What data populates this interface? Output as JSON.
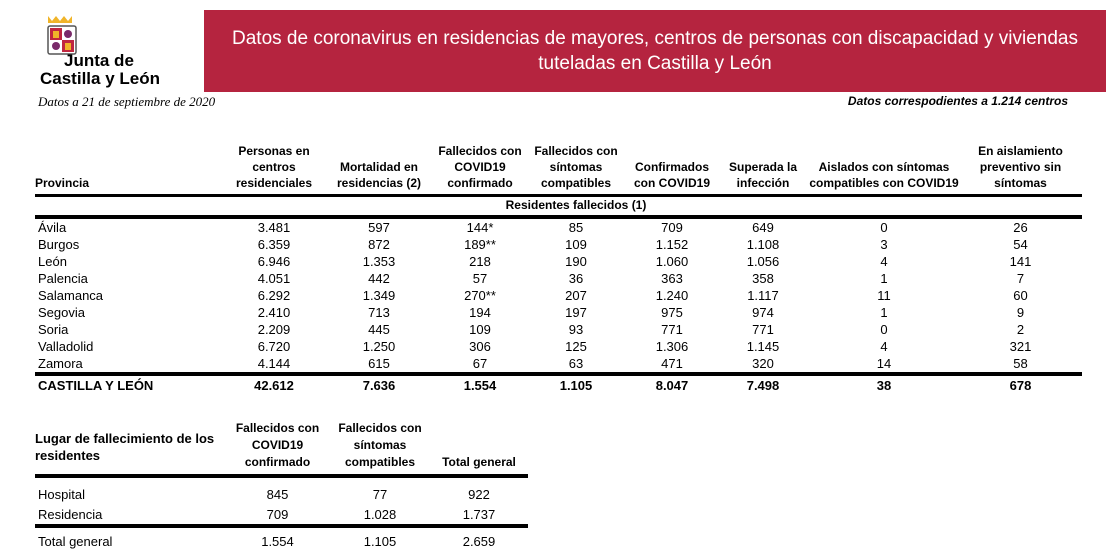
{
  "header": {
    "title": "Datos de coronavirus en residencias de mayores, centros de personas con discapacidad y viviendas tuteladas en Castilla y León",
    "logo_text_1": "Junta de",
    "logo_text_2": "Castilla y León",
    "date": "Datos a 21 de septiembre de 2020",
    "centros": "Datos correspodientes a 1.214 centros",
    "banner_color": "#b5243f"
  },
  "main_table": {
    "headers": [
      "Provincia",
      "Personas en centros residenciales",
      "Mortalidad en residencias (2)",
      "Fallecidos con COVID19 confirmado",
      "Fallecidos con síntomas compatibles",
      "Confirmados con COVID19",
      "Superada la infección",
      "Aislados con síntomas compatibles con COVID19",
      "En aislamiento preventivo sin síntomas"
    ],
    "subheader": "Residentes fallecidos (1)",
    "rows": [
      [
        "Ávila",
        "3.481",
        "597",
        "144*",
        "85",
        "709",
        "649",
        "0",
        "26"
      ],
      [
        "Burgos",
        "6.359",
        "872",
        "189**",
        "109",
        "1.152",
        "1.108",
        "3",
        "54"
      ],
      [
        "León",
        "6.946",
        "1.353",
        "218",
        "190",
        "1.060",
        "1.056",
        "4",
        "141"
      ],
      [
        "Palencia",
        "4.051",
        "442",
        "57",
        "36",
        "363",
        "358",
        "1",
        "7"
      ],
      [
        "Salamanca",
        "6.292",
        "1.349",
        "270**",
        "207",
        "1.240",
        "1.117",
        "11",
        "60"
      ],
      [
        "Segovia",
        "2.410",
        "713",
        "194",
        "197",
        "975",
        "974",
        "1",
        "9"
      ],
      [
        "Soria",
        "2.209",
        "445",
        "109",
        "93",
        "771",
        "771",
        "0",
        "2"
      ],
      [
        "Valladolid",
        "6.720",
        "1.250",
        "306",
        "125",
        "1.306",
        "1.145",
        "4",
        "321"
      ],
      [
        "Zamora",
        "4.144",
        "615",
        "67",
        "63",
        "471",
        "320",
        "14",
        "58"
      ]
    ],
    "total": [
      "CASTILLA Y LEÓN",
      "42.612",
      "7.636",
      "1.554",
      "1.105",
      "8.047",
      "7.498",
      "38",
      "678"
    ]
  },
  "place_table": {
    "headers": [
      "Lugar de fallecimiento de los residentes",
      "Fallecidos con COVID19 confirmado",
      "Fallecidos con síntomas compatibles",
      "Total general"
    ],
    "rows": [
      [
        "Hospital",
        "845",
        "77",
        "922"
      ],
      [
        "Residencia",
        "709",
        "1.028",
        "1.737"
      ]
    ],
    "total": [
      "Total general",
      "1.554",
      "1.105",
      "2.659"
    ]
  }
}
